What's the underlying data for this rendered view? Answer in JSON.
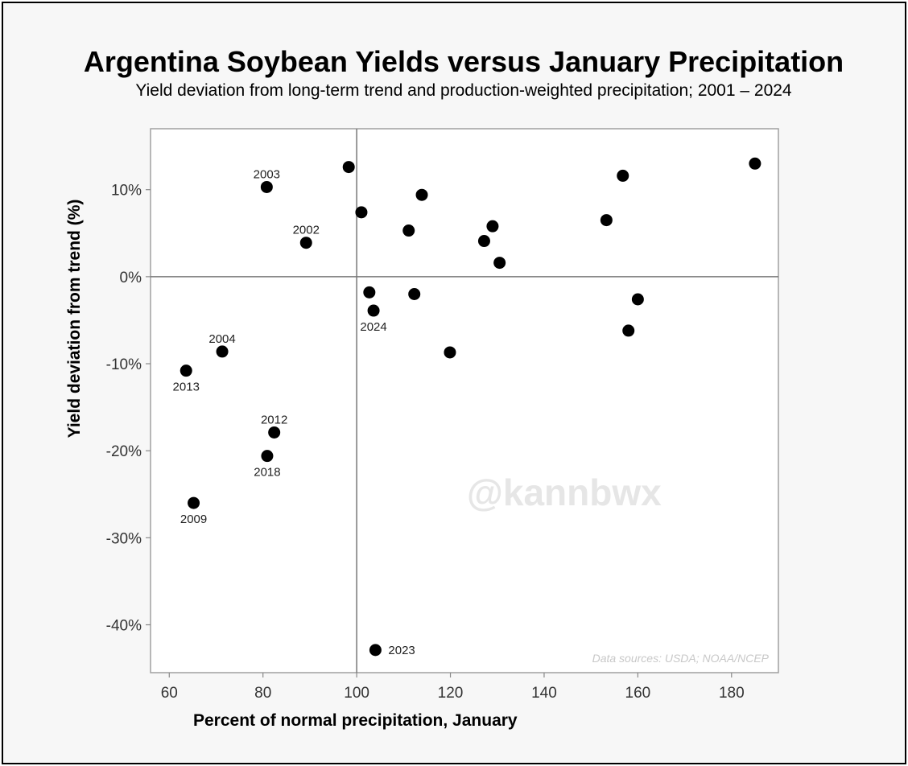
{
  "chart_data": {
    "type": "scatter",
    "title": "Argentina Soybean Yields versus January Precipitation",
    "subtitle": "Yield deviation from long-term trend and production-weighted precipitation; 2001 – 2024",
    "xlabel": "Percent of normal precipitation, January",
    "ylabel": "Yield deviation from trend (%)",
    "xlim": [
      56,
      190
    ],
    "ylim": [
      -45.5,
      17
    ],
    "x_ticks": [
      60,
      80,
      100,
      120,
      140,
      160,
      180
    ],
    "y_ticks": [
      10,
      0,
      -10,
      -20,
      -30,
      -40
    ],
    "y_tick_labels": [
      "10%",
      "0%",
      "-10%",
      "-20%",
      "-30%",
      "-40%"
    ],
    "reference_lines": {
      "x": 100,
      "y": 0
    },
    "grid": false,
    "source_note": "Data sources: USDA; NOAA/NCEP",
    "watermark": "@kannbwx",
    "colors": {
      "points": "#000000",
      "axes": "#888888",
      "reference": "#777777",
      "background": "#ffffff"
    },
    "points": [
      {
        "x": 80.8,
        "y": 10.3,
        "label": "2003",
        "label_pos": "above"
      },
      {
        "x": 89.2,
        "y": 3.9,
        "label": "2002",
        "label_pos": "above"
      },
      {
        "x": 71.3,
        "y": -8.6,
        "label": "2004",
        "label_pos": "above"
      },
      {
        "x": 63.6,
        "y": -10.8,
        "label": "2013",
        "label_pos": "below"
      },
      {
        "x": 82.4,
        "y": -17.9,
        "label": "2012",
        "label_pos": "above"
      },
      {
        "x": 80.9,
        "y": -20.6,
        "label": "2018",
        "label_pos": "below"
      },
      {
        "x": 65.2,
        "y": -26.0,
        "label": "2009",
        "label_pos": "below"
      },
      {
        "x": 104.0,
        "y": -42.9,
        "label": "2023",
        "label_pos": "right"
      },
      {
        "x": 103.6,
        "y": -3.9,
        "label": "2024",
        "label_pos": "below"
      },
      {
        "x": 98.3,
        "y": 12.6,
        "label": "",
        "label_pos": ""
      },
      {
        "x": 101.0,
        "y": 7.4,
        "label": "",
        "label_pos": ""
      },
      {
        "x": 113.9,
        "y": 9.4,
        "label": "",
        "label_pos": ""
      },
      {
        "x": 111.1,
        "y": 5.3,
        "label": "",
        "label_pos": ""
      },
      {
        "x": 102.7,
        "y": -1.8,
        "label": "",
        "label_pos": ""
      },
      {
        "x": 112.3,
        "y": -2.0,
        "label": "",
        "label_pos": ""
      },
      {
        "x": 119.9,
        "y": -8.7,
        "label": "",
        "label_pos": ""
      },
      {
        "x": 127.2,
        "y": 4.1,
        "label": "",
        "label_pos": ""
      },
      {
        "x": 129.0,
        "y": 5.8,
        "label": "",
        "label_pos": ""
      },
      {
        "x": 130.5,
        "y": 1.6,
        "label": "",
        "label_pos": ""
      },
      {
        "x": 153.3,
        "y": 6.5,
        "label": "",
        "label_pos": ""
      },
      {
        "x": 156.8,
        "y": 11.6,
        "label": "",
        "label_pos": ""
      },
      {
        "x": 160.0,
        "y": -2.6,
        "label": "",
        "label_pos": ""
      },
      {
        "x": 158.0,
        "y": -6.2,
        "label": "",
        "label_pos": ""
      },
      {
        "x": 185.0,
        "y": 13.0,
        "label": "",
        "label_pos": ""
      }
    ]
  }
}
